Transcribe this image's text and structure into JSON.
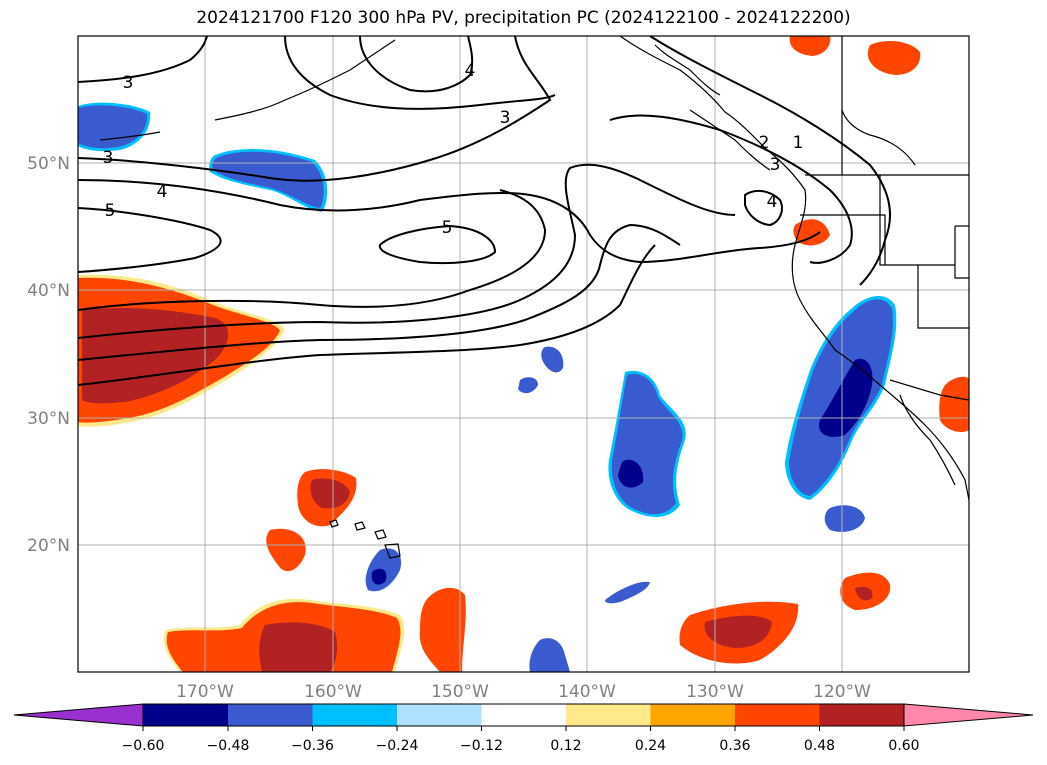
{
  "title": "2024121700 F120 300 hPa PV, precipitation PC (2024122100 - 2024122200)",
  "map": {
    "lat_labels": [
      "50°N",
      "40°N",
      "30°N",
      "20°N"
    ],
    "lon_labels": [
      "170°W",
      "160°W",
      "150°W",
      "140°W",
      "130°W",
      "120°W"
    ],
    "lon_range": [
      -180,
      -110
    ],
    "lat_range": [
      10,
      60
    ],
    "gridlines": true,
    "contour_labels": [
      "3",
      "3",
      "4",
      "3",
      "5",
      "4",
      "5",
      "3",
      "1",
      "2",
      "4"
    ]
  },
  "colorbar": {
    "ticks": [
      "−0.60",
      "−0.48",
      "−0.36",
      "−0.24",
      "−0.12",
      "0.12",
      "0.24",
      "0.36",
      "0.48",
      "0.60"
    ],
    "colors": [
      "#9b30d0",
      "#00008b",
      "#3a5bd0",
      "#00bfff",
      "#b0e0ff",
      "#ffffff",
      "#ffe98a",
      "#ffa500",
      "#ff4500",
      "#b22222",
      "#ff88aa"
    ],
    "extend": "both"
  },
  "colors": {
    "strong_neg": "#00008b",
    "mid_neg": "#3a5bd0",
    "light_neg": "#00bfff",
    "mid_pos": "#ff4500",
    "strong_pos": "#b22222",
    "edge_pos": "#ffe98a"
  }
}
